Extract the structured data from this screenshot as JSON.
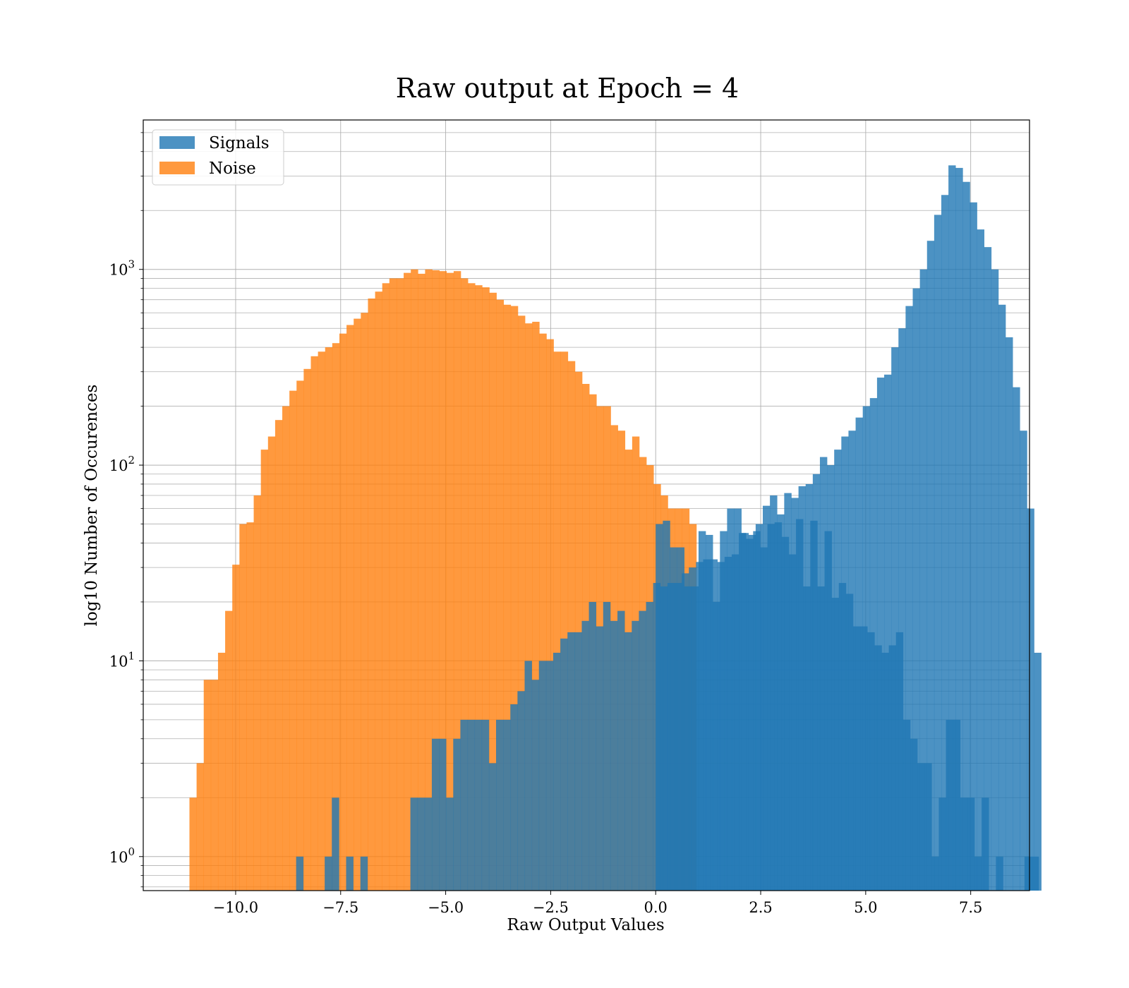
{
  "chart_data": {
    "type": "bar",
    "title": "Raw output at Epoch = 4",
    "xlabel": "Raw Output Values",
    "ylabel": "log10 Number of Occurences",
    "yscale": "log",
    "xlim": [
      -12.2,
      8.9
    ],
    "ylim": [
      0.67,
      5800
    ],
    "grid": true,
    "legend_position": "upper-left",
    "xticks": [
      {
        "value": -10,
        "label": "−10.0"
      },
      {
        "value": -7.5,
        "label": "−7.5"
      },
      {
        "value": -5,
        "label": "−5.0"
      },
      {
        "value": -2.5,
        "label": "−2.5"
      },
      {
        "value": 0,
        "label": "0.0"
      },
      {
        "value": 2.5,
        "label": "2.5"
      },
      {
        "value": 5,
        "label": "5.0"
      },
      {
        "value": 7.5,
        "label": "7.5"
      }
    ],
    "yticks": [
      {
        "value": 1,
        "base": "10",
        "exp": "0"
      },
      {
        "value": 10,
        "base": "10",
        "exp": "1"
      },
      {
        "value": 100,
        "base": "10",
        "exp": "2"
      },
      {
        "value": 1000,
        "base": "10",
        "exp": "3"
      }
    ],
    "series": [
      {
        "name": "Signals",
        "color": "#1f77b4",
        "opacity": 0.8,
        "bins_start": -8.56,
        "bin_width": 0.17,
        "counts": [
          1,
          0,
          0,
          0,
          1,
          2,
          0,
          1,
          0,
          1,
          0,
          0,
          0,
          0,
          0,
          0,
          2,
          2,
          2,
          4,
          4,
          2,
          4,
          5,
          5,
          5,
          5,
          3,
          5,
          5,
          6,
          7,
          10,
          8,
          10,
          10,
          11,
          13,
          14,
          14,
          16,
          20,
          15,
          20,
          16,
          18,
          14,
          16,
          18,
          20,
          25,
          24,
          25,
          25,
          28,
          30,
          32,
          33,
          33,
          32,
          34,
          35,
          45,
          42,
          46,
          38,
          50,
          51,
          43,
          35,
          53,
          24,
          52,
          24,
          46,
          21,
          25,
          22,
          15,
          15,
          14,
          12,
          11,
          12,
          14,
          5,
          4,
          3,
          3,
          1,
          2,
          5,
          5,
          2,
          2,
          1,
          2,
          0,
          1,
          0,
          0,
          0,
          1,
          1,
          0,
          0,
          0,
          0,
          0,
          0,
          0,
          0,
          0,
          0,
          0,
          0,
          0,
          0,
          0,
          0,
          0,
          0,
          0,
          0,
          0,
          0
        ]
      },
      {
        "name": "Noise",
        "color": "#ff7f0e",
        "opacity": 0.8,
        "bins_start": -11.1,
        "bin_width": 0.17,
        "counts": [
          2,
          3,
          8,
          8,
          11,
          18,
          31,
          50,
          51,
          70,
          120,
          140,
          170,
          200,
          240,
          270,
          310,
          360,
          380,
          400,
          420,
          470,
          520,
          560,
          600,
          710,
          770,
          850,
          900,
          900,
          960,
          1000,
          950,
          1000,
          990,
          980,
          960,
          980,
          900,
          850,
          830,
          810,
          760,
          700,
          660,
          650,
          580,
          530,
          540,
          470,
          440,
          380,
          380,
          340,
          300,
          260,
          230,
          200,
          200,
          160,
          150,
          120,
          140,
          110,
          100,
          80,
          70,
          60,
          60,
          60,
          50,
          0,
          0,
          0,
          0,
          0,
          0,
          0,
          0,
          0,
          0,
          0,
          0,
          0,
          0,
          0,
          0,
          0,
          0,
          0,
          0,
          0,
          0,
          0,
          0,
          0,
          0,
          0,
          0,
          0,
          0,
          0,
          0,
          0,
          0,
          0,
          0,
          0,
          0,
          0,
          0,
          0,
          0,
          0,
          0,
          0,
          0,
          0,
          0,
          0,
          0
        ]
      }
    ],
    "signals_tail": {
      "bins_start": 0.0,
      "bin_width": 0.17,
      "counts": [
        50,
        52,
        38,
        38,
        24,
        24,
        46,
        44,
        20,
        46,
        60,
        60,
        45,
        44,
        50,
        62,
        70,
        56,
        72,
        68,
        78,
        80,
        90,
        110,
        100,
        120,
        140,
        150,
        175,
        200,
        220,
        280,
        290,
        400,
        500,
        650,
        800,
        1000,
        1400,
        1900,
        2400,
        3400,
        3300,
        2800,
        2200,
        1600,
        1300,
        1000,
        660,
        450,
        250,
        150,
        60,
        11
      ]
    }
  }
}
